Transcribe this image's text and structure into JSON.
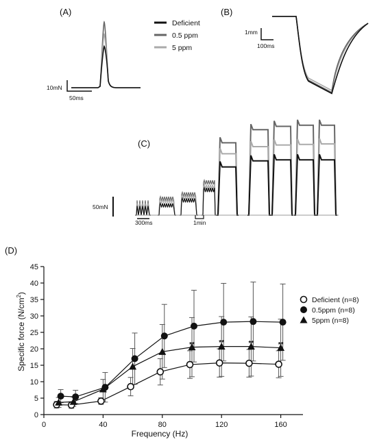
{
  "panels": {
    "a": {
      "label": "(A)",
      "scale_y": "10mN",
      "scale_x": "50ms"
    },
    "b": {
      "label": "(B)",
      "scale_y": "1mm",
      "scale_x": "100ms"
    },
    "c": {
      "label": "(C)",
      "scale_y": "50mN",
      "scale_x1": "300ms",
      "scale_x2": "1min"
    },
    "d": {
      "label": "(D)"
    }
  },
  "top_legend": {
    "items": [
      {
        "name": "Deficient",
        "color": "#111111"
      },
      {
        "name": "0.5 ppm",
        "color": "#666666"
      },
      {
        "name": "5 ppm",
        "color": "#aaaaaa"
      }
    ]
  },
  "chart_data": [
    {
      "panel": "A",
      "type": "line",
      "series": [
        {
          "name": "Deficient",
          "color": "#111111",
          "peak": 17
        },
        {
          "name": "0.5 ppm",
          "color": "#666666",
          "peak": 27
        },
        {
          "name": "5 ppm",
          "color": "#aaaaaa",
          "peak": 22
        }
      ]
    },
    {
      "panel": "B",
      "type": "line",
      "series": [
        {
          "name": "Deficient",
          "color": "#111111",
          "shortening": 3.75
        },
        {
          "name": "0.5 ppm",
          "color": "#666666",
          "shortening": 3.7
        },
        {
          "name": "5 ppm",
          "color": "#aaaaaa",
          "shortening": 3.6
        }
      ]
    },
    {
      "panel": "C",
      "type": "line",
      "series": [
        {
          "name": "Deficient",
          "color": "#111111",
          "plateau": [
            17,
            17,
            18,
            27,
            46,
            88,
            99,
            101,
            101,
            101
          ]
        },
        {
          "name": "0.5 ppm",
          "color": "#666666",
          "plateau": [
            27,
            27,
            30,
            38,
            60,
            132,
            156,
            162,
            164,
            164
          ]
        },
        {
          "name": "5 ppm",
          "color": "#aaaaaa",
          "plateau": [
            22,
            22,
            26,
            34,
            52,
            112,
            125,
            128,
            129,
            130
          ]
        }
      ]
    },
    {
      "panel": "D",
      "type": "line",
      "xlabel": "Frequency  (Hz)",
      "ylabel": "Specific force (N/cm²)",
      "ylabel_main": "Specific force (N/cm",
      "ylabel_sup": "2",
      "ylabel_close": ")",
      "xlim": [
        0,
        175
      ],
      "ylim": [
        0,
        45
      ],
      "xticks": [
        "0",
        "40",
        "80",
        "120",
        "160"
      ],
      "yticks": [
        "0",
        "5",
        "10",
        "15",
        "20",
        "25",
        "30",
        "35",
        "40",
        "45"
      ],
      "x": [
        10,
        20,
        40,
        60,
        80,
        100,
        120,
        140,
        160
      ],
      "series": [
        {
          "name": "Deficient (n=8)",
          "marker": "open-circle",
          "values": [
            3.0,
            2.9,
            4.1,
            8.5,
            13.0,
            15.2,
            15.7,
            15.6,
            15.3
          ],
          "errors": [
            1.0,
            1.0,
            1.0,
            2.8,
            4.0,
            4.2,
            4.3,
            4.2,
            4.1
          ]
        },
        {
          "name": "0.5ppm (n=8)",
          "marker": "filled-circle",
          "values": [
            5.6,
            5.4,
            8.3,
            17.0,
            23.9,
            26.9,
            28.1,
            28.3,
            28.1
          ],
          "errors": [
            2.0,
            2.0,
            4.5,
            7.8,
            9.6,
            10.9,
            11.8,
            12.0,
            11.6
          ]
        },
        {
          "name": "5ppm (n=8)",
          "marker": "filled-triangle",
          "values": [
            3.7,
            3.9,
            7.7,
            14.6,
            19.1,
            20.5,
            20.7,
            20.7,
            20.3
          ],
          "errors": [
            1.5,
            1.4,
            3.0,
            5.5,
            8.3,
            9.0,
            9.1,
            9.0,
            8.7
          ]
        }
      ],
      "significance": [
        {
          "x": 80,
          "label": "*"
        },
        {
          "x": 100,
          "label": "**"
        },
        {
          "x": 120,
          "label": "**"
        },
        {
          "x": 140,
          "label": "**"
        },
        {
          "x": 160,
          "label": "**"
        }
      ],
      "legend_position": "right"
    }
  ]
}
